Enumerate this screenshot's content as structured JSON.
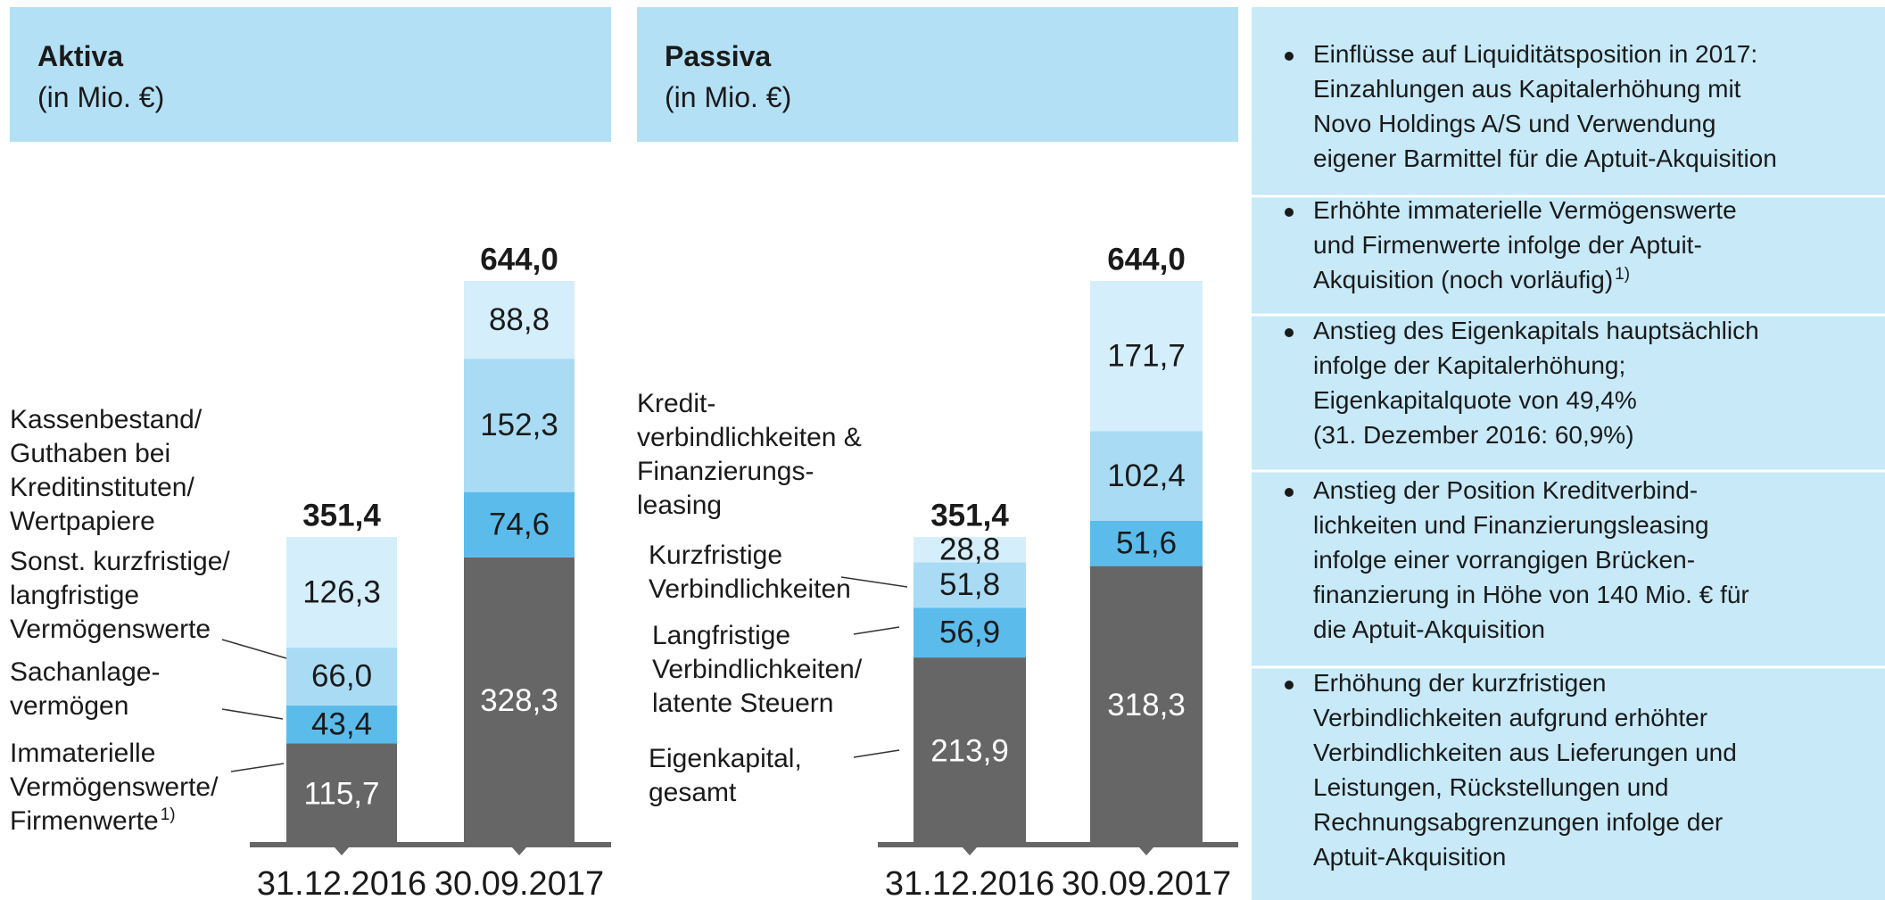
{
  "chart_data": [
    {
      "type": "bar",
      "stacked": true,
      "title": "Aktiva",
      "subtitle": "(in Mio. €)",
      "categories": [
        "31.12.2016",
        "30.09.2017"
      ],
      "totals": [
        351.4,
        644.0
      ],
      "total_labels": [
        "351,4",
        "644,0"
      ],
      "series": [
        {
          "name": "Immaterielle\nVermögenswerte/\nFirmenwerte",
          "note": "1)",
          "color": "#666666",
          "values": [
            115.7,
            328.3
          ],
          "value_labels": [
            "115,7",
            "328,3"
          ]
        },
        {
          "name": "Sachanlage-\nvermögen",
          "color": "#5bbcec",
          "values": [
            43.4,
            74.6
          ],
          "value_labels": [
            "43,4",
            "74,6"
          ]
        },
        {
          "name": "Sonst. kurzfristige/\nlangfristige\nVermögenswerte",
          "color": "#a9dcf4",
          "values": [
            66.0,
            152.3
          ],
          "value_labels": [
            "66,0",
            "152,3"
          ]
        },
        {
          "name": "Kassenbestand/\nGuthaben bei\nKreditinstituten/\nWertpapiere",
          "color": "#d4eefb",
          "values": [
            126.3,
            88.8
          ],
          "value_labels": [
            "126,3",
            "88,8"
          ]
        }
      ]
    },
    {
      "type": "bar",
      "stacked": true,
      "title": "Passiva",
      "subtitle": "(in Mio. €)",
      "categories": [
        "31.12.2016",
        "30.09.2017"
      ],
      "totals": [
        351.4,
        644.0
      ],
      "total_labels": [
        "351,4",
        "644,0"
      ],
      "series": [
        {
          "name": "Eigenkapital,\ngesamt",
          "color": "#666666",
          "values": [
            213.9,
            318.3
          ],
          "value_labels": [
            "213,9",
            "318,3"
          ]
        },
        {
          "name": "Langfristige\nVerbindlichkeiten/\nlatente Steuern",
          "color": "#5bbcec",
          "values": [
            56.9,
            51.6
          ],
          "value_labels": [
            "56,9",
            "51,6"
          ]
        },
        {
          "name": "Kurzfristige\nVerbindlichkeiten",
          "color": "#a9dcf4",
          "values": [
            51.8,
            102.4
          ],
          "value_labels": [
            "51,8",
            "102,4"
          ]
        },
        {
          "name": "Kredit-\nverbindlichkeiten &\nFinanzierungs-\nleasing",
          "color": "#d4eefb",
          "values": [
            28.8,
            171.7
          ],
          "value_labels": [
            "28,8",
            "171,7"
          ]
        }
      ]
    }
  ],
  "notes": [
    {
      "text": "Einflüsse auf Liquiditätsposition in 2017:\nEinzahlungen aus Kapitalerhöhung mit\nNovo Holdings A/S und Verwendung\neigener Barmittel für die Aptuit-Akquisition"
    },
    {
      "text": "Erhöhte immaterielle Vermögenswerte\nund Firmenwerte infolge der Aptuit-\nAkquisition (noch vorläufig)",
      "note": "1)"
    },
    {
      "text": "Anstieg des Eigenkapitals hauptsächlich\ninfolge der Kapitalerhöhung;\nEigenkapitalquote von 49,4%\n(31. Dezember 2016: 60,9%)"
    },
    {
      "text": "Anstieg der Position Kreditverbind-\nlichkeiten und Finanzierungsleasing\ninfolge einer vorrangigen Brücken-\nfinanzierung in Höhe von 140 Mio. € für\ndie Aptuit-Akquisition"
    },
    {
      "text": "Erhöhung der kurzfristigen\nVerbindlichkeiten aufgrund erhöhter\nVerbindlichkeiten aus Lieferungen und\nLeistungen, Rückstellungen und\nRechnungsabgrenzungen infolge der\nAptuit-Akquisition"
    }
  ]
}
